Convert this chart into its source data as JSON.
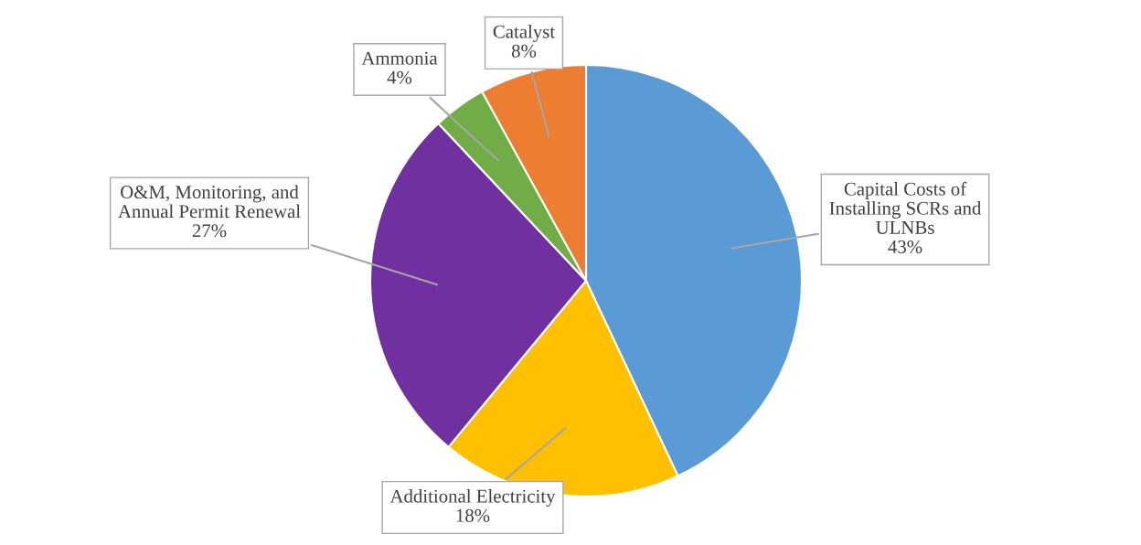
{
  "chart_data": {
    "type": "pie",
    "categories": [
      "Capital Costs of\nInstalling SCRs and\nULNBs",
      "Additional Electricity",
      "O&M, Monitoring, and\nAnnual Permit Renewal",
      "Ammonia",
      "Catalyst"
    ],
    "values": [
      43,
      18,
      27,
      4,
      8
    ],
    "value_labels": [
      "43%",
      "18%",
      "27%",
      "4%",
      "8%"
    ],
    "colors": [
      "#5b9bd5",
      "#ffc000",
      "#7030a0",
      "#70ad47",
      "#ed7d31"
    ],
    "legend": false
  }
}
